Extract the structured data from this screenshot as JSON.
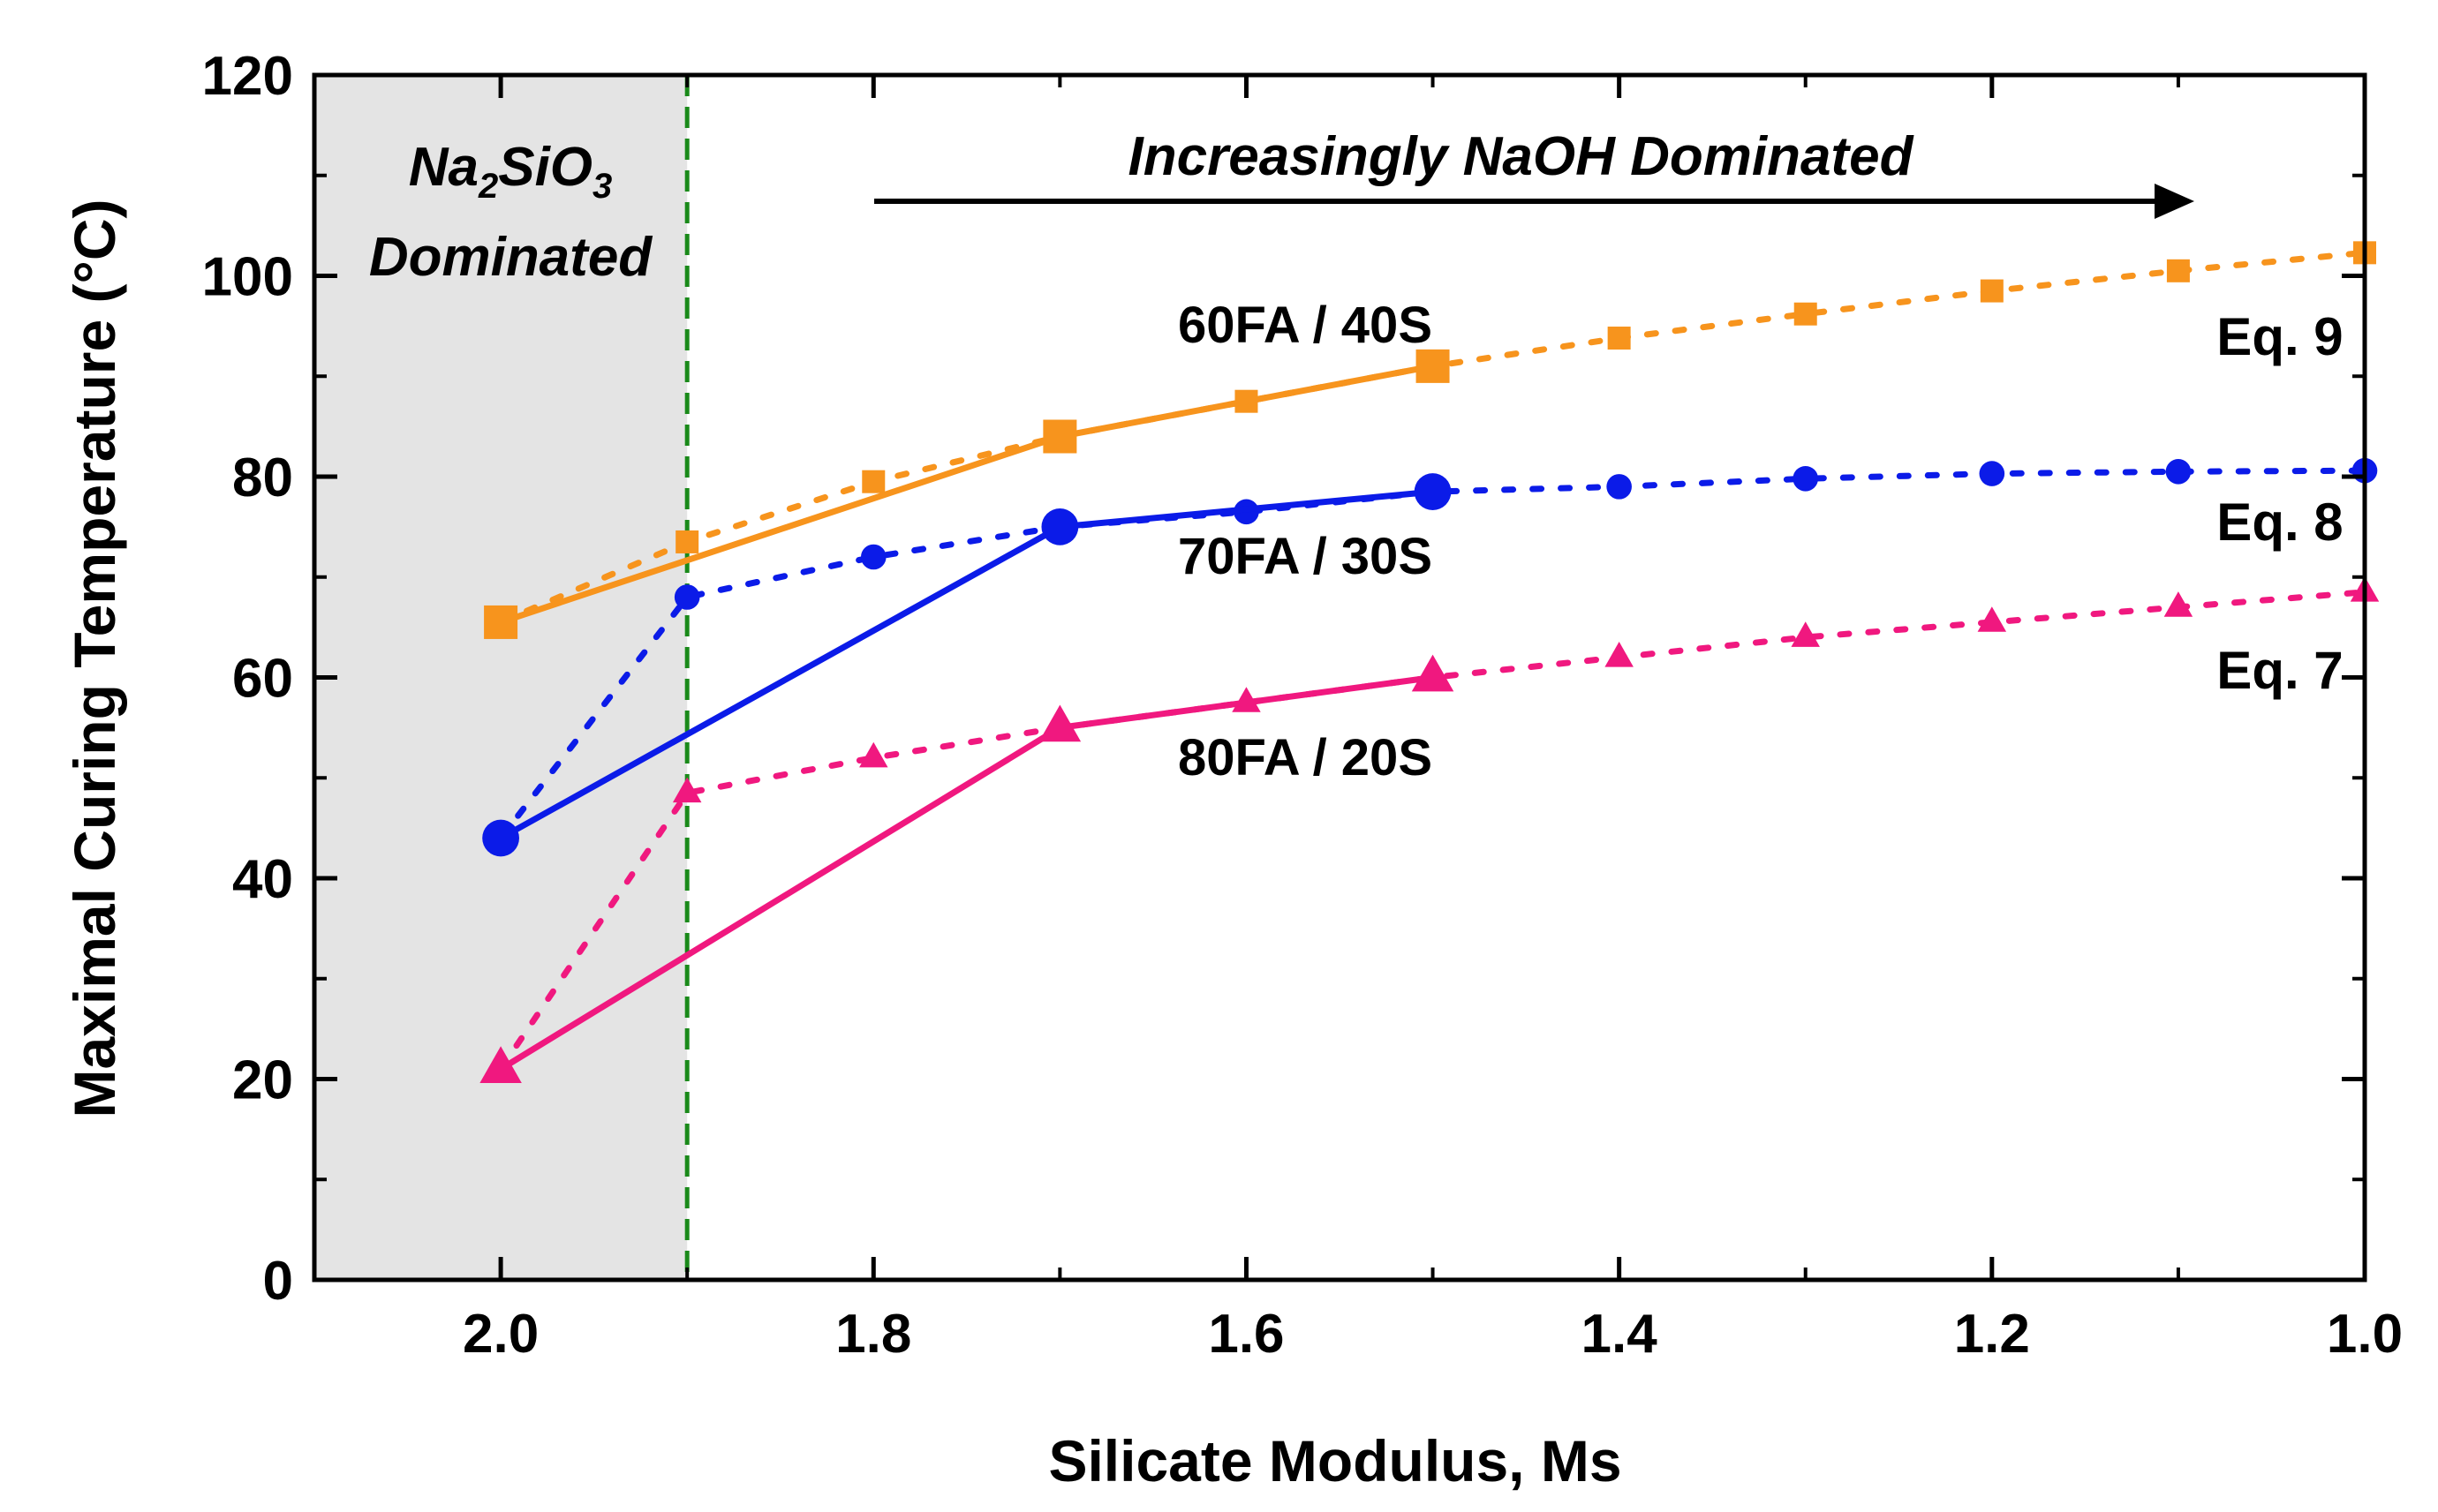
{
  "chart_data": {
    "type": "line",
    "title": "",
    "xlabel": "Silicate Modulus, Ms",
    "ylabel": "Maximal Curing Temperature (°C)",
    "xlim": [
      2.1,
      1.0
    ],
    "ylim": [
      0,
      120
    ],
    "x_reversed": true,
    "x_ticks": [
      2.0,
      1.8,
      1.6,
      1.4,
      1.2,
      1.0
    ],
    "x_tick_labels": [
      "2.0",
      "1.8",
      "1.6",
      "1.4",
      "1.2",
      "1.0"
    ],
    "y_ticks": [
      0,
      20,
      40,
      60,
      80,
      100,
      120
    ],
    "y_tick_labels": [
      "0",
      "20",
      "40",
      "60",
      "80",
      "100",
      "120"
    ],
    "grid": false,
    "shaded_region": {
      "x_from": 2.1,
      "x_to": 1.9,
      "color": "#e4e4e4"
    },
    "divider": {
      "x": 1.9,
      "color": "#1a8a1a"
    },
    "annotations": {
      "region_left_line1": "Na",
      "region_left_sub1": "2",
      "region_left_mid": "SiO",
      "region_left_sub2": "3",
      "region_left_line2": "Dominated",
      "region_right": "Increasingly NaOH Dominated"
    },
    "series": [
      {
        "name": "60FA / 40S",
        "style": "solid",
        "marker": "square",
        "color": "#f7941d",
        "x": [
          2.0,
          1.7,
          1.5
        ],
        "values": [
          65.5,
          84,
          91
        ]
      },
      {
        "name": "70FA / 30S",
        "style": "solid",
        "marker": "circle",
        "color": "#0b1be8",
        "x": [
          2.0,
          1.7,
          1.5
        ],
        "values": [
          44,
          75,
          78.5
        ]
      },
      {
        "name": "80FA / 20S",
        "style": "solid",
        "marker": "triangle",
        "color": "#f0187f",
        "x": [
          2.0,
          1.7,
          1.5
        ],
        "values": [
          21,
          55,
          60
        ]
      },
      {
        "name": "Eq. 9",
        "style": "dotted",
        "marker": "square",
        "color": "#f7941d",
        "x": [
          2.0,
          1.9,
          1.8,
          1.7,
          1.6,
          1.5,
          1.4,
          1.3,
          1.2,
          1.1,
          1.0
        ],
        "values": [
          65.5,
          73.5,
          79.5,
          84,
          87.5,
          91,
          93.8,
          96.2,
          98.5,
          100.5,
          102.3
        ]
      },
      {
        "name": "Eq. 8",
        "style": "dotted",
        "marker": "circle",
        "color": "#0b1be8",
        "x": [
          2.0,
          1.9,
          1.8,
          1.7,
          1.6,
          1.5,
          1.4,
          1.3,
          1.2,
          1.1,
          1.0
        ],
        "values": [
          44,
          68,
          72,
          75,
          76.5,
          78.5,
          79,
          79.8,
          80.3,
          80.5,
          80.6
        ]
      },
      {
        "name": "Eq. 7",
        "style": "dotted",
        "marker": "triangle",
        "color": "#f0187f",
        "x": [
          2.0,
          1.9,
          1.8,
          1.7,
          1.6,
          1.5,
          1.4,
          1.3,
          1.2,
          1.1,
          1.0
        ],
        "values": [
          21,
          48.5,
          52,
          55,
          57.5,
          60,
          62,
          64,
          65.5,
          67,
          68.5
        ]
      }
    ]
  }
}
